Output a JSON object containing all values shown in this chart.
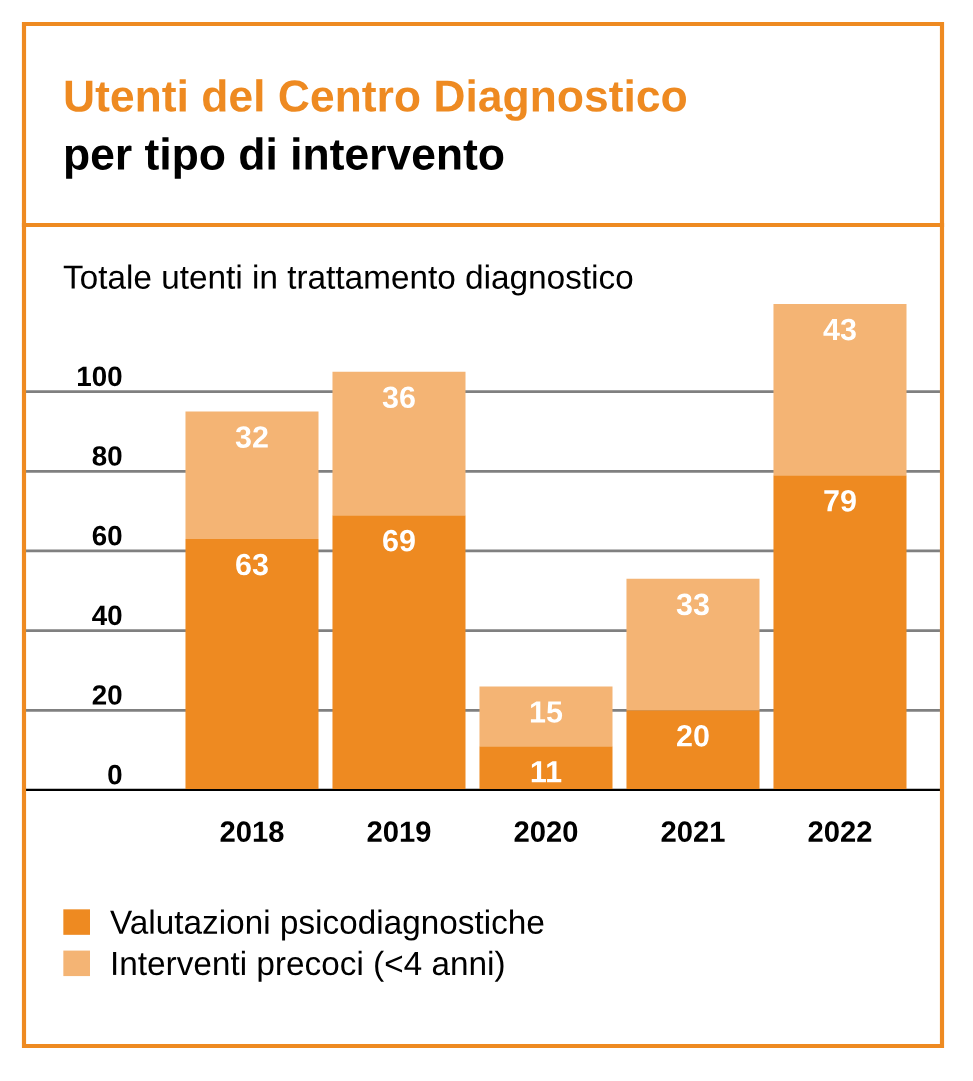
{
  "chart_data": {
    "type": "bar",
    "title": "Utenti del Centro Diagnostico",
    "subtitle": "per tipo di intervento",
    "ylabel": "Totale utenti in trattamento diagnostico",
    "categories": [
      "2018",
      "2019",
      "2020",
      "2021",
      "2022"
    ],
    "series": [
      {
        "name": "Valutazioni psicodiagnostiche",
        "color": "#ee8a21",
        "values": [
          63,
          69,
          11,
          20,
          79
        ]
      },
      {
        "name": "Interventi precoci (<4 anni)",
        "color": "#f4b474",
        "values": [
          32,
          36,
          15,
          33,
          43
        ]
      }
    ],
    "stacked": true,
    "data_labels": true,
    "ylim": [
      0,
      122
    ],
    "yticks": [
      0,
      20,
      40,
      60,
      80,
      100
    ],
    "grid": "y",
    "legend": "bottom left"
  }
}
